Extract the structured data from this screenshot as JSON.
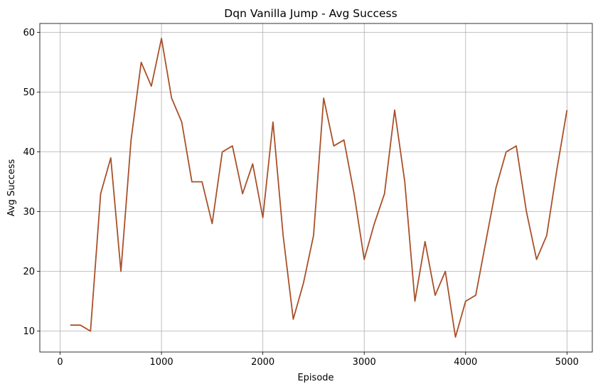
{
  "chart_data": {
    "type": "line",
    "title": "Dqn Vanilla Jump - Avg Success",
    "xlabel": "Episode",
    "ylabel": "Avg Success",
    "xlim": [
      -200,
      5250
    ],
    "ylim": [
      6.5,
      61.5
    ],
    "xticks": [
      0,
      1000,
      2000,
      3000,
      4000,
      5000
    ],
    "yticks": [
      10,
      20,
      30,
      40,
      50,
      60
    ],
    "grid": true,
    "line_color": "#a9502a",
    "series": [
      {
        "x": [
          100,
          200,
          300,
          400,
          500,
          600,
          700,
          800,
          900,
          1000,
          1100,
          1200,
          1300,
          1400,
          1500,
          1600,
          1700,
          1800,
          1900,
          2000,
          2100,
          2200,
          2300,
          2400,
          2500,
          2600,
          2700,
          2800,
          2900,
          3000,
          3100,
          3200,
          3300,
          3400,
          3500,
          3600,
          3700,
          3800,
          3900,
          4000,
          4100,
          4200,
          4300,
          4400,
          4500,
          4600,
          4700,
          4800,
          4900,
          5000
        ],
        "values": [
          11,
          11,
          10,
          33,
          39,
          20,
          42,
          55,
          51,
          59,
          49,
          45,
          35,
          35,
          28,
          40,
          41,
          33,
          38,
          29,
          45,
          26,
          12,
          18,
          26,
          49,
          41,
          42,
          33,
          22,
          28,
          33,
          47,
          35,
          15,
          25,
          16,
          20,
          9,
          15,
          16,
          25,
          34,
          40,
          41,
          30,
          22,
          26,
          37,
          47
        ]
      }
    ]
  }
}
